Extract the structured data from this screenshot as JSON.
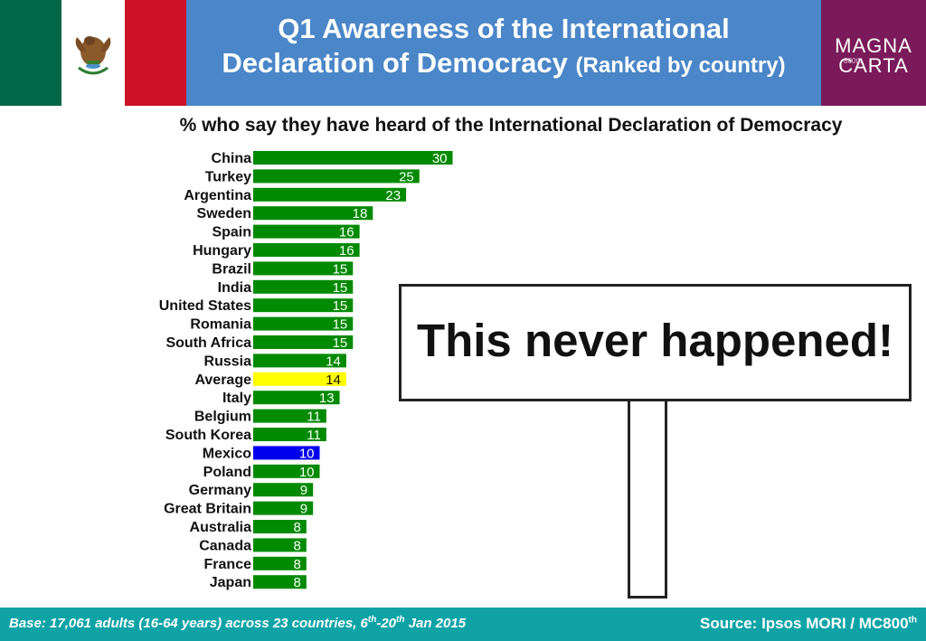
{
  "header": {
    "title_line1": "Q1 Awareness of the International",
    "title_line2": "Declaration of Democracy",
    "title_sub": "(Ranked by country)",
    "logo_line1": "MAGNA",
    "logo_line2": "CARTA",
    "logo_mark": "800th"
  },
  "subtitle": "% who say they have heard of the International Declaration of Democracy",
  "chart_data": {
    "type": "bar",
    "orientation": "horizontal",
    "title": "% who say they have heard of the International Declaration of Democracy",
    "categories": [
      "China",
      "Turkey",
      "Argentina",
      "Sweden",
      "Spain",
      "Hungary",
      "Brazil",
      "India",
      "United States",
      "Romania",
      "South Africa",
      "Russia",
      "Average",
      "Italy",
      "Belgium",
      "South Korea",
      "Mexico",
      "Poland",
      "Germany",
      "Great Britain",
      "Australia",
      "Canada",
      "France",
      "Japan"
    ],
    "values": [
      30,
      25,
      23,
      18,
      16,
      16,
      15,
      15,
      15,
      15,
      15,
      14,
      14,
      13,
      11,
      11,
      10,
      10,
      9,
      9,
      8,
      8,
      8,
      8
    ],
    "highlight": {
      "Average": "#ffff00",
      "Mexico": "#0000ee"
    },
    "default_color": "#008a00",
    "xlabel": "",
    "ylabel": ""
  },
  "sign": {
    "text": "This never happened!"
  },
  "footer": {
    "base_pre": "Base: 17,061 adults (16-64 years) across 23 countries, 6",
    "base_sup1": "th",
    "base_mid": "-20",
    "base_sup2": "th",
    "base_post": " Jan 2015",
    "source": "Source: Ipsos MORI / MC800",
    "source_sup": "th"
  }
}
